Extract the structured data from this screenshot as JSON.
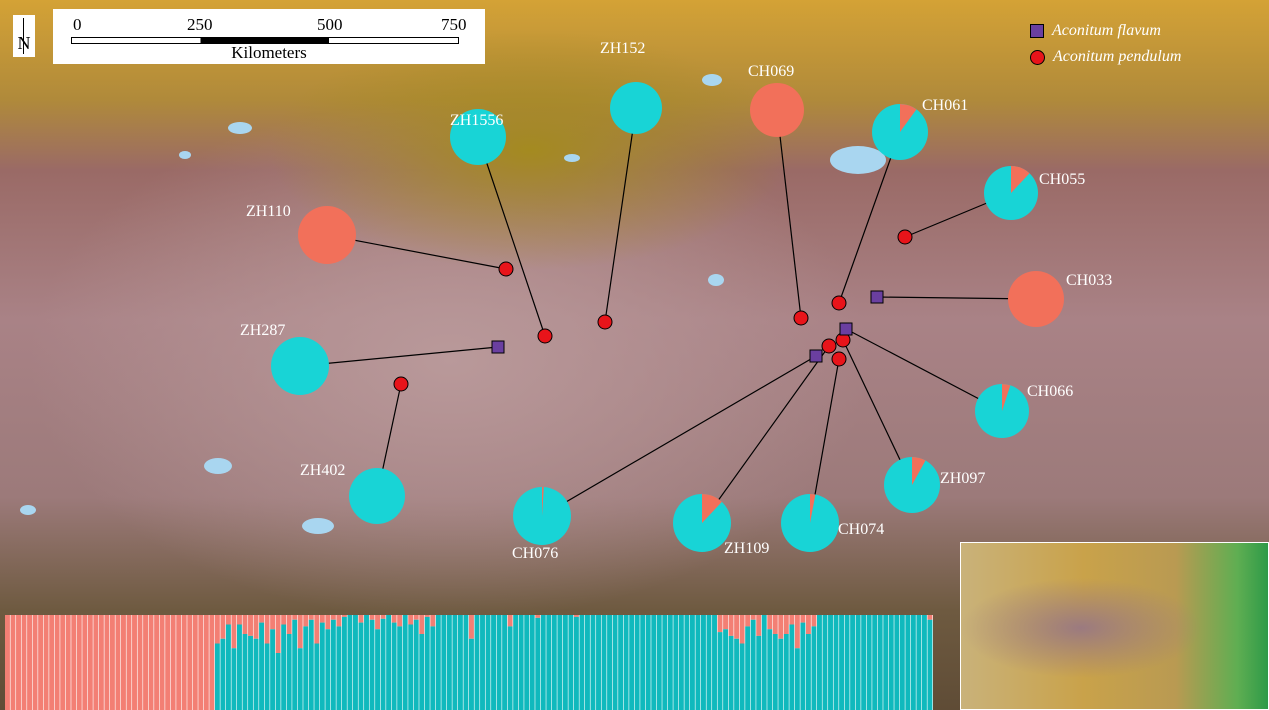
{
  "north_arrow": {
    "label": "N"
  },
  "scale_bar": {
    "ticks": [
      "0",
      "250",
      "500",
      "750"
    ],
    "unit": "Kilometers"
  },
  "legend": [
    {
      "label": "Aconitum flavum",
      "shape": "square",
      "color": "#6a3fa0"
    },
    {
      "label": "Aconitum pendulum",
      "shape": "circle",
      "color": "#e8141a"
    }
  ],
  "colors": {
    "cluster1": "#f2705a",
    "cluster2": "#18d4d6",
    "structure_cluster1": "#f37f74",
    "structure_cluster2": "#10b9bd"
  },
  "populations": [
    {
      "id": "ZH1556",
      "cluster1": 0
    },
    {
      "id": "ZH152",
      "cluster1": 0
    },
    {
      "id": "CH069",
      "cluster1": 1
    },
    {
      "id": "CH061",
      "cluster1": 0.1
    },
    {
      "id": "CH055",
      "cluster1": 0.12
    },
    {
      "id": "ZH110",
      "cluster1": 1
    },
    {
      "id": "CH033",
      "cluster1": 1
    },
    {
      "id": "ZH287",
      "cluster1": 0
    },
    {
      "id": "CH066",
      "cluster1": 0.05
    },
    {
      "id": "ZH402",
      "cluster1": 0
    },
    {
      "id": "CH076",
      "cluster1": 0.01
    },
    {
      "id": "ZH109",
      "cluster1": 0.12
    },
    {
      "id": "CH074",
      "cluster1": 0.03
    },
    {
      "id": "ZH097",
      "cluster1": 0.08
    }
  ],
  "structure_plot": {
    "cluster1_proportions": [
      1,
      1,
      1,
      1,
      1,
      1,
      1,
      1,
      1,
      1,
      1,
      1,
      1,
      1,
      1,
      1,
      1,
      1,
      1,
      1,
      1,
      1,
      1,
      1,
      1,
      1,
      1,
      1,
      1,
      1,
      1,
      1,
      1,
      1,
      1,
      1,
      1,
      1,
      0.3,
      0.25,
      0.1,
      0.35,
      0.1,
      0.2,
      0.22,
      0.25,
      0.08,
      0.3,
      0.15,
      0.4,
      0.1,
      0.2,
      0.05,
      0.35,
      0.12,
      0.05,
      0.3,
      0.08,
      0.15,
      0.05,
      0.12,
      0.02,
      0,
      0,
      0.08,
      0,
      0.05,
      0.15,
      0.04,
      0,
      0.08,
      0.12,
      0,
      0.1,
      0.05,
      0.2,
      0.02,
      0.12,
      0,
      0,
      0,
      0,
      0,
      0,
      0.25,
      0,
      0,
      0,
      0,
      0,
      0,
      0.12,
      0,
      0,
      0,
      0,
      0.03,
      0,
      0,
      0,
      0,
      0,
      0,
      0.02,
      0,
      0,
      0,
      0,
      0,
      0,
      0,
      0,
      0,
      0,
      0,
      0,
      0,
      0,
      0,
      0,
      0,
      0,
      0,
      0,
      0,
      0,
      0,
      0,
      0,
      0.18,
      0.15,
      0.22,
      0.25,
      0.3,
      0.12,
      0.05,
      0.22,
      0,
      0.15,
      0.2,
      0.25,
      0.2,
      0.1,
      0.35,
      0.08,
      0.2,
      0.12,
      0,
      0,
      0,
      0,
      0,
      0,
      0,
      0,
      0,
      0,
      0,
      0,
      0,
      0,
      0,
      0,
      0,
      0,
      0,
      0,
      0.05
    ]
  }
}
